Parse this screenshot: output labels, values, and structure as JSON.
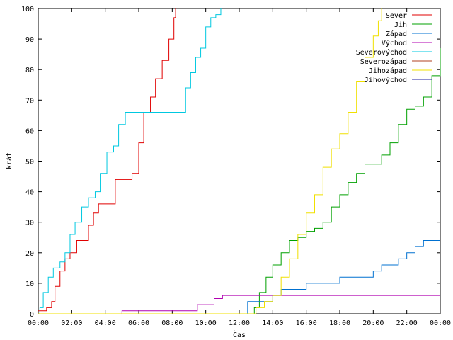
{
  "chart_data": {
    "type": "line",
    "xlabel": "Čas",
    "ylabel": "krát",
    "xlim": [
      0,
      24
    ],
    "ylim": [
      0,
      100
    ],
    "x_ticks": [
      "00:00",
      "02:00",
      "04:00",
      "06:00",
      "08:00",
      "10:00",
      "12:00",
      "14:00",
      "16:00",
      "18:00",
      "20:00",
      "22:00",
      "00:00"
    ],
    "y_ticks": [
      0,
      10,
      20,
      30,
      40,
      50,
      60,
      70,
      80,
      90,
      100
    ],
    "grid": false,
    "legend_position": "top-right",
    "series": [
      {
        "name": "Sever",
        "color": "#e00000",
        "x": [
          0,
          0.5,
          0.8,
          1.0,
          1.3,
          1.6,
          1.9,
          2.3,
          2.6,
          3.0,
          3.3,
          3.6,
          4.0,
          4.3,
          4.6,
          4.9,
          5.2,
          5.6,
          6.0,
          6.3,
          6.7,
          7.0,
          7.4,
          7.8,
          8.1,
          8.2
        ],
        "y": [
          1,
          2,
          4,
          9,
          14,
          18,
          20,
          24,
          24,
          29,
          33,
          36,
          36,
          36,
          44,
          44,
          44,
          46,
          56,
          66,
          71,
          77,
          83,
          90,
          97,
          100
        ]
      },
      {
        "name": "Jih",
        "color": "#00a000",
        "x": [
          0,
          12.9,
          13.2,
          13.6,
          14.0,
          14.5,
          15.0,
          15.5,
          16.0,
          16.5,
          17.0,
          17.5,
          18.0,
          18.5,
          19.0,
          19.5,
          20.0,
          20.5,
          21.0,
          21.5,
          22.0,
          22.5,
          23.0,
          23.5,
          24.0
        ],
        "y": [
          0,
          2,
          7,
          12,
          16,
          20,
          24,
          25,
          27,
          28,
          30,
          35,
          39,
          43,
          46,
          49,
          49,
          52,
          56,
          62,
          67,
          68,
          71,
          78,
          87
        ]
      },
      {
        "name": "Západ",
        "color": "#0070d0",
        "x": [
          0,
          12.4,
          12.5,
          13.0,
          14.0,
          14.5,
          15.5,
          16.0,
          17.0,
          18.0,
          19.0,
          20.0,
          20.5,
          21.5,
          22.0,
          22.5,
          23.0,
          24.0
        ],
        "y": [
          0,
          0,
          4,
          4,
          6,
          8,
          8,
          10,
          10,
          12,
          12,
          14,
          16,
          18,
          20,
          22,
          24,
          24
        ]
      },
      {
        "name": "Východ",
        "color": "#b000b0",
        "x": [
          0,
          4.9,
          5.0,
          6.0,
          8.0,
          9.2,
          9.5,
          10.0,
          10.5,
          10.8,
          11.0,
          12.0,
          14.0,
          18.0,
          24.0
        ],
        "y": [
          0,
          0,
          1,
          1,
          1,
          1,
          3,
          3,
          5,
          5,
          6,
          6,
          6,
          6,
          6
        ]
      },
      {
        "name": "Severovýchod",
        "color": "#00c8e0",
        "x": [
          0,
          0.1,
          0.3,
          0.6,
          0.9,
          1.3,
          1.6,
          1.9,
          2.2,
          2.6,
          3.0,
          3.4,
          3.7,
          4.1,
          4.5,
          4.8,
          5.2,
          6.0,
          7.0,
          8.5,
          8.8,
          9.1,
          9.4,
          9.7,
          10.0,
          10.3,
          10.6,
          10.9
        ],
        "y": [
          0,
          2,
          7,
          12,
          15,
          17,
          20,
          26,
          30,
          35,
          38,
          40,
          46,
          53,
          55,
          62,
          66,
          66,
          66,
          66,
          74,
          79,
          84,
          87,
          94,
          97,
          98,
          100
        ]
      },
      {
        "name": "Severozápad",
        "color": "#b04020",
        "x": [],
        "y": []
      },
      {
        "name": "Jihozápad",
        "color": "#f0e000",
        "x": [
          0,
          12.5,
          13.0,
          13.5,
          14.0,
          14.5,
          15.0,
          15.5,
          16.0,
          16.5,
          17.0,
          17.5,
          18.0,
          18.5,
          19.0,
          19.5,
          20.0,
          20.3,
          20.5
        ],
        "y": [
          0,
          0,
          2,
          4,
          6,
          12,
          18,
          26,
          33,
          39,
          48,
          54,
          59,
          66,
          76,
          84,
          91,
          96,
          100
        ]
      },
      {
        "name": "Jihovýchod",
        "color": "#2020a0",
        "x": [],
        "y": []
      }
    ]
  }
}
